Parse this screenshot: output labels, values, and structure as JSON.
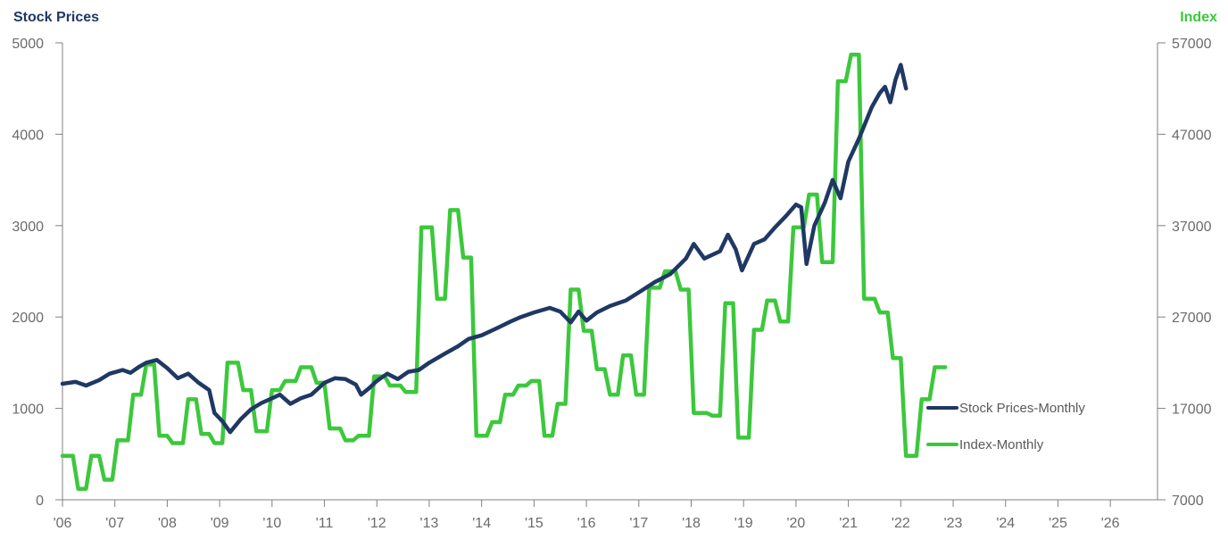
{
  "chart_data": {
    "type": "line",
    "left_axis_title": "Stock Prices",
    "right_axis_title": "Index",
    "left_ylim": [
      0,
      5000
    ],
    "left_yticks": [
      0,
      1000,
      2000,
      3000,
      4000,
      5000
    ],
    "left_ytick_labels": [
      "0",
      "1000",
      "2000",
      "3000",
      "4000",
      "5000"
    ],
    "right_ylim": [
      7000,
      57000
    ],
    "right_yticks": [
      7000,
      17000,
      27000,
      37000,
      47000,
      57000
    ],
    "right_ytick_labels": [
      "7000",
      "17000",
      "27000",
      "37000",
      "47000",
      "57000"
    ],
    "xlim": [
      2006,
      2026.9
    ],
    "xticks": [
      2006,
      2007,
      2008,
      2009,
      2010,
      2011,
      2012,
      2013,
      2014,
      2015,
      2016,
      2017,
      2018,
      2019,
      2020,
      2021,
      2022,
      2023,
      2024,
      2025,
      2026
    ],
    "xtick_labels": [
      "'06",
      "'07",
      "'08",
      "'09",
      "'10",
      "'11",
      "'12",
      "'13",
      "'14",
      "'15",
      "'16",
      "'17",
      "'18",
      "'19",
      "'20",
      "'21",
      "'22",
      "'23",
      "'24",
      "'25",
      "'26"
    ],
    "legend_position": "right",
    "colors": {
      "stock": "#1f3864",
      "index": "#3cc83c",
      "left_title": "#1f3864",
      "right_title": "#3cc83c",
      "axis": "#808080"
    },
    "series": [
      {
        "name": "Stock Prices-Monthly",
        "axis": "left",
        "points": [
          [
            2006.0,
            1270
          ],
          [
            2006.25,
            1290
          ],
          [
            2006.45,
            1250
          ],
          [
            2006.7,
            1310
          ],
          [
            2006.9,
            1380
          ],
          [
            2007.15,
            1420
          ],
          [
            2007.3,
            1390
          ],
          [
            2007.45,
            1450
          ],
          [
            2007.6,
            1500
          ],
          [
            2007.8,
            1530
          ],
          [
            2008.0,
            1440
          ],
          [
            2008.2,
            1330
          ],
          [
            2008.4,
            1380
          ],
          [
            2008.6,
            1280
          ],
          [
            2008.8,
            1200
          ],
          [
            2008.9,
            950
          ],
          [
            2009.05,
            860
          ],
          [
            2009.2,
            740
          ],
          [
            2009.4,
            880
          ],
          [
            2009.6,
            990
          ],
          [
            2009.8,
            1060
          ],
          [
            2010.0,
            1110
          ],
          [
            2010.15,
            1150
          ],
          [
            2010.35,
            1050
          ],
          [
            2010.55,
            1110
          ],
          [
            2010.75,
            1150
          ],
          [
            2011.0,
            1280
          ],
          [
            2011.2,
            1330
          ],
          [
            2011.4,
            1320
          ],
          [
            2011.6,
            1260
          ],
          [
            2011.7,
            1150
          ],
          [
            2011.85,
            1220
          ],
          [
            2012.0,
            1300
          ],
          [
            2012.2,
            1380
          ],
          [
            2012.4,
            1320
          ],
          [
            2012.6,
            1400
          ],
          [
            2012.8,
            1420
          ],
          [
            2013.0,
            1500
          ],
          [
            2013.3,
            1600
          ],
          [
            2013.55,
            1680
          ],
          [
            2013.75,
            1760
          ],
          [
            2014.0,
            1800
          ],
          [
            2014.3,
            1880
          ],
          [
            2014.55,
            1950
          ],
          [
            2014.75,
            2000
          ],
          [
            2015.0,
            2050
          ],
          [
            2015.3,
            2100
          ],
          [
            2015.5,
            2060
          ],
          [
            2015.7,
            1940
          ],
          [
            2015.85,
            2060
          ],
          [
            2016.0,
            1960
          ],
          [
            2016.2,
            2050
          ],
          [
            2016.45,
            2120
          ],
          [
            2016.75,
            2180
          ],
          [
            2017.0,
            2270
          ],
          [
            2017.3,
            2380
          ],
          [
            2017.6,
            2470
          ],
          [
            2017.9,
            2640
          ],
          [
            2018.05,
            2800
          ],
          [
            2018.25,
            2640
          ],
          [
            2018.55,
            2720
          ],
          [
            2018.7,
            2900
          ],
          [
            2018.85,
            2740
          ],
          [
            2018.97,
            2510
          ],
          [
            2019.2,
            2800
          ],
          [
            2019.4,
            2850
          ],
          [
            2019.6,
            2980
          ],
          [
            2019.8,
            3100
          ],
          [
            2020.0,
            3230
          ],
          [
            2020.1,
            3200
          ],
          [
            2020.2,
            2580
          ],
          [
            2020.35,
            3000
          ],
          [
            2020.55,
            3250
          ],
          [
            2020.7,
            3500
          ],
          [
            2020.85,
            3300
          ],
          [
            2021.0,
            3700
          ],
          [
            2021.2,
            3950
          ],
          [
            2021.45,
            4300
          ],
          [
            2021.6,
            4450
          ],
          [
            2021.7,
            4520
          ],
          [
            2021.8,
            4350
          ],
          [
            2021.9,
            4600
          ],
          [
            2022.0,
            4760
          ],
          [
            2022.1,
            4500
          ]
        ]
      },
      {
        "name": "Index-Monthly",
        "axis": "right",
        "points": [
          [
            2006.0,
            11800
          ],
          [
            2006.2,
            11800
          ],
          [
            2006.3,
            8200
          ],
          [
            2006.45,
            8200
          ],
          [
            2006.55,
            11800
          ],
          [
            2006.7,
            11800
          ],
          [
            2006.8,
            9200
          ],
          [
            2006.95,
            9200
          ],
          [
            2007.05,
            13500
          ],
          [
            2007.25,
            13500
          ],
          [
            2007.35,
            18500
          ],
          [
            2007.5,
            18500
          ],
          [
            2007.6,
            21800
          ],
          [
            2007.75,
            21800
          ],
          [
            2007.85,
            14000
          ],
          [
            2008.0,
            14000
          ],
          [
            2008.1,
            13200
          ],
          [
            2008.3,
            13200
          ],
          [
            2008.4,
            18000
          ],
          [
            2008.55,
            18000
          ],
          [
            2008.65,
            14200
          ],
          [
            2008.8,
            14200
          ],
          [
            2008.9,
            13200
          ],
          [
            2009.05,
            13200
          ],
          [
            2009.15,
            22000
          ],
          [
            2009.35,
            22000
          ],
          [
            2009.45,
            19000
          ],
          [
            2009.6,
            19000
          ],
          [
            2009.7,
            14500
          ],
          [
            2009.9,
            14500
          ],
          [
            2010.0,
            19000
          ],
          [
            2010.15,
            19000
          ],
          [
            2010.25,
            20000
          ],
          [
            2010.45,
            20000
          ],
          [
            2010.55,
            21500
          ],
          [
            2010.75,
            21500
          ],
          [
            2010.85,
            19800
          ],
          [
            2011.0,
            19800
          ],
          [
            2011.1,
            14800
          ],
          [
            2011.3,
            14800
          ],
          [
            2011.4,
            13500
          ],
          [
            2011.55,
            13500
          ],
          [
            2011.65,
            14000
          ],
          [
            2011.85,
            14000
          ],
          [
            2011.95,
            20500
          ],
          [
            2012.15,
            20500
          ],
          [
            2012.25,
            19500
          ],
          [
            2012.45,
            19500
          ],
          [
            2012.55,
            18800
          ],
          [
            2012.75,
            18800
          ],
          [
            2012.85,
            36800
          ],
          [
            2013.05,
            36800
          ],
          [
            2013.15,
            29000
          ],
          [
            2013.3,
            29000
          ],
          [
            2013.4,
            38700
          ],
          [
            2013.55,
            38700
          ],
          [
            2013.65,
            33500
          ],
          [
            2013.8,
            33500
          ],
          [
            2013.9,
            14000
          ],
          [
            2014.1,
            14000
          ],
          [
            2014.2,
            15500
          ],
          [
            2014.35,
            15500
          ],
          [
            2014.45,
            18500
          ],
          [
            2014.6,
            18500
          ],
          [
            2014.7,
            19500
          ],
          [
            2014.85,
            19500
          ],
          [
            2014.95,
            20000
          ],
          [
            2015.1,
            20000
          ],
          [
            2015.2,
            14000
          ],
          [
            2015.35,
            14000
          ],
          [
            2015.45,
            17500
          ],
          [
            2015.6,
            17500
          ],
          [
            2015.7,
            30000
          ],
          [
            2015.85,
            30000
          ],
          [
            2015.95,
            25500
          ],
          [
            2016.1,
            25500
          ],
          [
            2016.2,
            21300
          ],
          [
            2016.35,
            21300
          ],
          [
            2016.45,
            18500
          ],
          [
            2016.6,
            18500
          ],
          [
            2016.7,
            22800
          ],
          [
            2016.85,
            22800
          ],
          [
            2016.95,
            18500
          ],
          [
            2017.1,
            18500
          ],
          [
            2017.2,
            30200
          ],
          [
            2017.4,
            30200
          ],
          [
            2017.5,
            32000
          ],
          [
            2017.7,
            32000
          ],
          [
            2017.8,
            30000
          ],
          [
            2017.95,
            30000
          ],
          [
            2018.05,
            16500
          ],
          [
            2018.3,
            16500
          ],
          [
            2018.4,
            16200
          ],
          [
            2018.55,
            16200
          ],
          [
            2018.65,
            28500
          ],
          [
            2018.8,
            28500
          ],
          [
            2018.9,
            13800
          ],
          [
            2019.1,
            13800
          ],
          [
            2019.2,
            25600
          ],
          [
            2019.35,
            25600
          ],
          [
            2019.45,
            28800
          ],
          [
            2019.6,
            28800
          ],
          [
            2019.7,
            26500
          ],
          [
            2019.85,
            26500
          ],
          [
            2019.95,
            36800
          ],
          [
            2020.15,
            36800
          ],
          [
            2020.25,
            40400
          ],
          [
            2020.4,
            40400
          ],
          [
            2020.5,
            33000
          ],
          [
            2020.7,
            33000
          ],
          [
            2020.8,
            52800
          ],
          [
            2020.95,
            52800
          ],
          [
            2021.05,
            55700
          ],
          [
            2021.2,
            55700
          ],
          [
            2021.3,
            29000
          ],
          [
            2021.5,
            29000
          ],
          [
            2021.6,
            27500
          ],
          [
            2021.75,
            27500
          ],
          [
            2021.85,
            22500
          ],
          [
            2022.0,
            22500
          ],
          [
            2022.1,
            11800
          ],
          [
            2022.3,
            11800
          ],
          [
            2022.4,
            18000
          ],
          [
            2022.55,
            18000
          ],
          [
            2022.65,
            21500
          ],
          [
            2022.85,
            21500
          ]
        ]
      }
    ]
  }
}
